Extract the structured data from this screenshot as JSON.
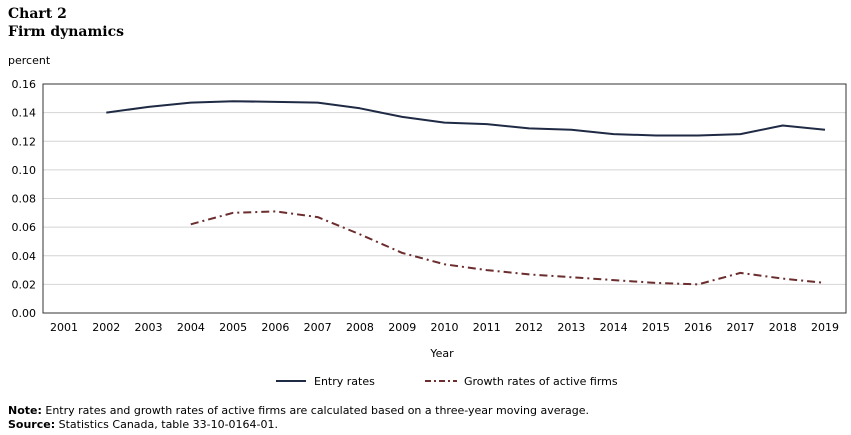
{
  "header": {
    "chart_label": "Chart 2",
    "title": "Firm dynamics"
  },
  "chart_data": {
    "type": "line",
    "title": "Firm dynamics",
    "xlabel": "Year",
    "ylabel": "percent",
    "ylim": [
      0,
      0.16
    ],
    "yticks": [
      "0.00",
      "0.02",
      "0.04",
      "0.06",
      "0.08",
      "0.10",
      "0.12",
      "0.14",
      "0.16"
    ],
    "categories": [
      "2001",
      "2002",
      "2003",
      "2004",
      "2005",
      "2006",
      "2007",
      "2008",
      "2009",
      "2010",
      "2011",
      "2012",
      "2013",
      "2014",
      "2015",
      "2016",
      "2017",
      "2018",
      "2019"
    ],
    "grid": true,
    "legend_position": "bottom",
    "series": [
      {
        "name": "Entry rates",
        "style": "solid",
        "color": "#1f2a44",
        "values": [
          null,
          0.14,
          0.144,
          0.147,
          0.148,
          0.1475,
          0.147,
          0.143,
          0.137,
          0.133,
          0.132,
          0.129,
          0.128,
          0.125,
          0.124,
          0.124,
          0.125,
          0.131,
          0.128
        ]
      },
      {
        "name": "Growth rates of active firms",
        "style": "dashdot",
        "color": "#6b2d2d",
        "values": [
          null,
          null,
          null,
          0.062,
          0.07,
          0.071,
          0.067,
          0.055,
          0.042,
          0.034,
          0.03,
          0.027,
          0.025,
          0.023,
          0.021,
          0.02,
          0.028,
          0.024,
          0.021
        ]
      }
    ]
  },
  "notes": {
    "note_label": "Note:",
    "note_text": " Entry rates and growth rates of active firms are calculated based on a three-year moving average.",
    "source_label": "Source:",
    "source_text": " Statistics Canada, table 33-10-0164-01."
  }
}
